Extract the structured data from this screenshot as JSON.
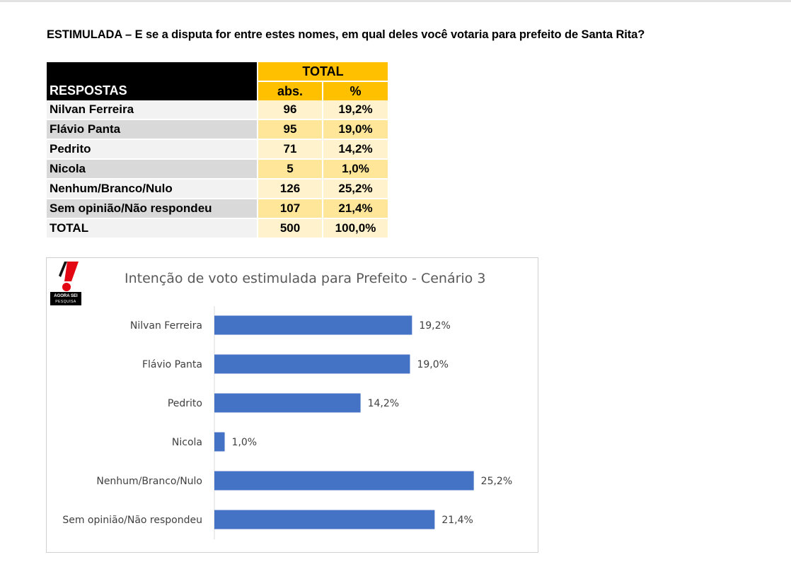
{
  "question": "ESTIMULADA – E se a disputa for entre estes nomes, em qual deles você votaria para prefeito de Santa Rita?",
  "table": {
    "header_respostas": "RESPOSTAS",
    "header_total": "TOTAL",
    "header_abs": "abs.",
    "header_pct": "%",
    "rows": [
      {
        "name": "Nilvan Ferreira",
        "abs": "96",
        "pct": "19,2%"
      },
      {
        "name": "Flávio Panta",
        "abs": "95",
        "pct": "19,0%"
      },
      {
        "name": "Pedrito",
        "abs": "71",
        "pct": "14,2%"
      },
      {
        "name": "Nicola",
        "abs": "5",
        "pct": "1,0%"
      },
      {
        "name": "Nenhum/Branco/Nulo",
        "abs": "126",
        "pct": "25,2%"
      },
      {
        "name": "Sem opinião/Não respondeu",
        "abs": "107",
        "pct": "21,4%"
      }
    ],
    "total": {
      "name": "TOTAL",
      "abs": "500",
      "pct": "100,0%"
    }
  },
  "logo": {
    "line1": "AGORA SEI",
    "line2": "PESQUISA"
  },
  "colors": {
    "bar": "#4472c4",
    "header_black": "#000000",
    "header_gold": "#ffc000",
    "logo_red": "#e30613"
  },
  "chart_data": {
    "type": "bar",
    "orientation": "horizontal",
    "title": "Intenção de voto estimulada para Prefeito - Cenário 3",
    "categories": [
      "Nilvan Ferreira",
      "Flávio Panta",
      "Pedrito",
      "Nicola",
      "Nenhum/Branco/Nulo",
      "Sem opinião/Não respondeu"
    ],
    "values": [
      19.2,
      19.0,
      14.2,
      1.0,
      25.2,
      21.4
    ],
    "labels": [
      "19,2%",
      "19,0%",
      "14,2%",
      "1,0%",
      "25,2%",
      "21,4%"
    ],
    "xlim": [
      0,
      30
    ],
    "grid": false,
    "legend": "none"
  }
}
